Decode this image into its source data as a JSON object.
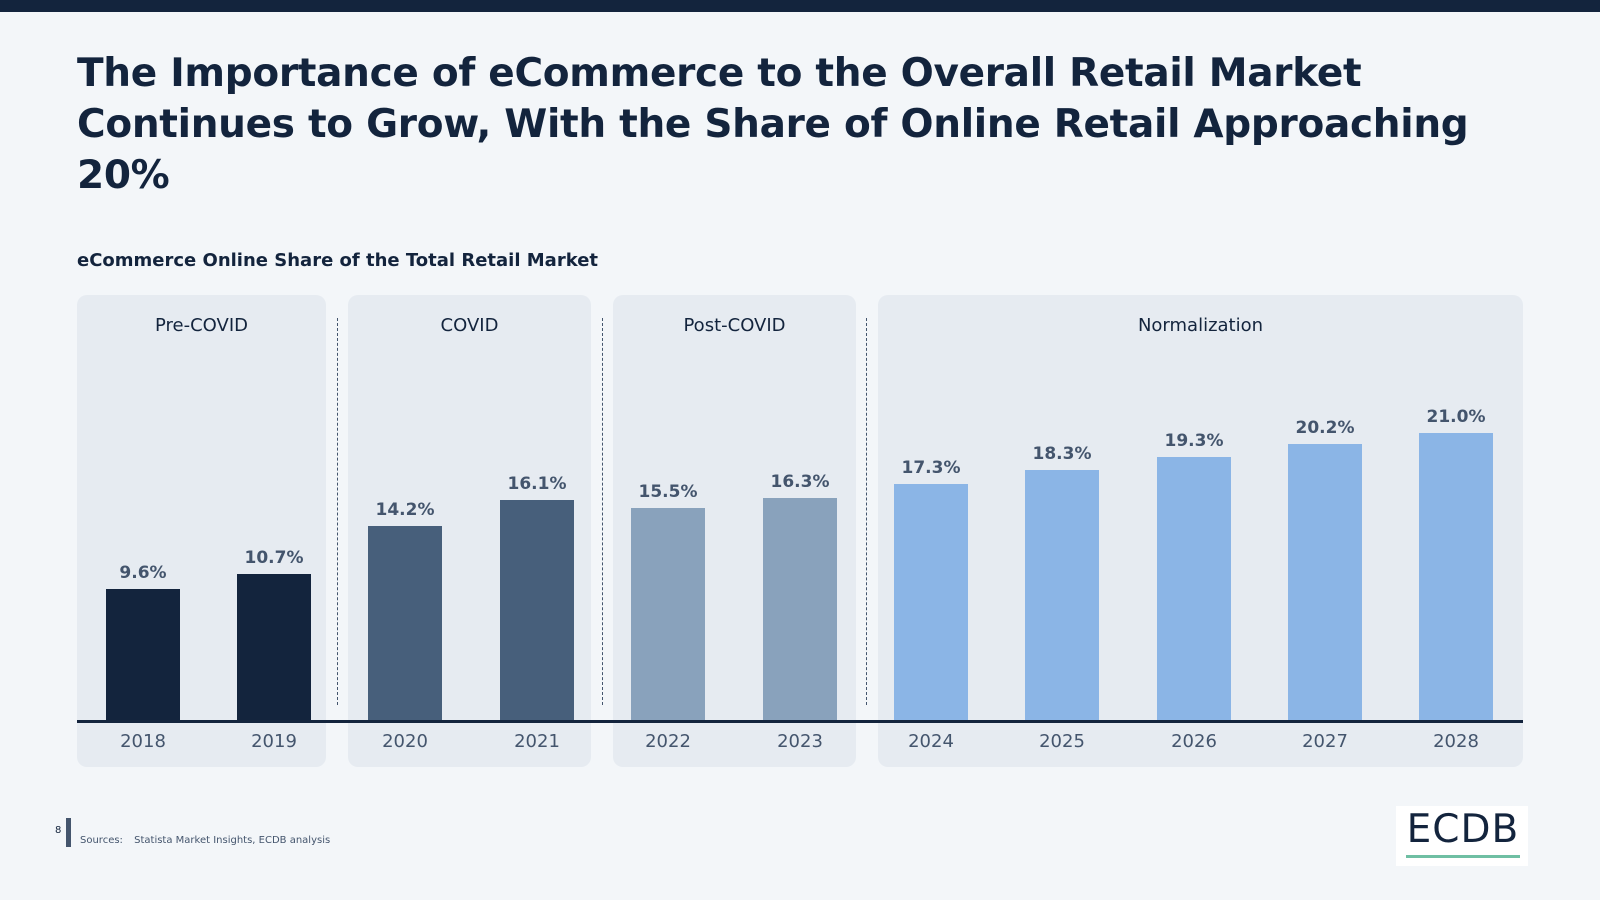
{
  "title": "The Importance of eCommerce to the Overall Retail Market Continues to Grow, With the Share of Online Retail Approaching 20%",
  "colors": {
    "background": "#f3f6f9",
    "panel": "#e6ebf1",
    "navy": "#13243d",
    "phase_colors": [
      "#13243d",
      "#475f7b",
      "#89a2bc",
      "#8bb5e6"
    ]
  },
  "chart_data": {
    "type": "bar",
    "title": "eCommerce Online Share of the Total Retail Market",
    "xlabel": "",
    "ylabel": "",
    "ylim": [
      0,
      30
    ],
    "categories": [
      "2018",
      "2019",
      "2020",
      "2021",
      "2022",
      "2023",
      "2024",
      "2025",
      "2026",
      "2027",
      "2028"
    ],
    "values": [
      9.6,
      10.7,
      14.2,
      16.1,
      15.5,
      16.3,
      17.3,
      18.3,
      19.3,
      20.2,
      21.0
    ],
    "data_labels": [
      "9.6%",
      "10.7%",
      "14.2%",
      "16.1%",
      "15.5%",
      "16.3%",
      "17.3%",
      "18.3%",
      "19.3%",
      "20.2%",
      "21.0%"
    ],
    "phases": [
      {
        "name": "Pre-COVID",
        "categories": [
          "2018",
          "2019"
        ]
      },
      {
        "name": "COVID",
        "categories": [
          "2020",
          "2021"
        ]
      },
      {
        "name": "Post-COVID",
        "categories": [
          "2022",
          "2023"
        ]
      },
      {
        "name": "Normalization",
        "categories": [
          "2024",
          "2025",
          "2026",
          "2027",
          "2028"
        ]
      }
    ]
  },
  "footer": {
    "page_number": "8",
    "sources_label": "Sources:",
    "sources_text": "Statista Market Insights, ECDB analysis",
    "logo": "ECDB"
  }
}
